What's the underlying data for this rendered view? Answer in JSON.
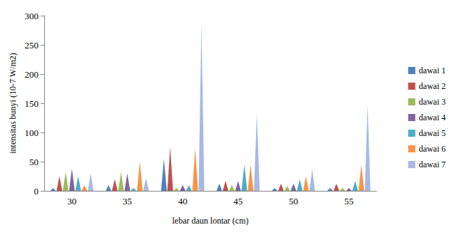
{
  "chart_data": {
    "type": "bar",
    "marker": "triangle",
    "xlabel": "lebar daun lontar (cm)",
    "ylabel": "intensitas bunyi (10-7 W/m2)",
    "categories": [
      "30",
      "35",
      "40",
      "45",
      "50",
      "55"
    ],
    "series": [
      {
        "name": "dawai 1",
        "color": "#4F81BD",
        "values": [
          5,
          10,
          55,
          12,
          5,
          5
        ]
      },
      {
        "name": "dawai 2",
        "color": "#C0504D",
        "values": [
          25,
          20,
          75,
          17,
          12,
          12
        ]
      },
      {
        "name": "dawai 3",
        "color": "#9BBB59",
        "values": [
          32,
          32,
          5,
          10,
          8,
          5
        ]
      },
      {
        "name": "dawai 4",
        "color": "#8064A2",
        "values": [
          38,
          30,
          10,
          17,
          12,
          5
        ]
      },
      {
        "name": "dawai 5",
        "color": "#4BACC6",
        "values": [
          25,
          5,
          10,
          45,
          20,
          17
        ]
      },
      {
        "name": "dawai 6",
        "color": "#F79646",
        "values": [
          10,
          50,
          73,
          45,
          25,
          45
        ]
      },
      {
        "name": "dawai 7",
        "color": "#A7B9E3",
        "values": [
          30,
          22,
          288,
          133,
          37,
          148
        ]
      }
    ],
    "ylim": [
      0,
      300
    ],
    "yticks": [
      0,
      50,
      100,
      150,
      200,
      250,
      300
    ],
    "grid": false,
    "legend": "right"
  }
}
